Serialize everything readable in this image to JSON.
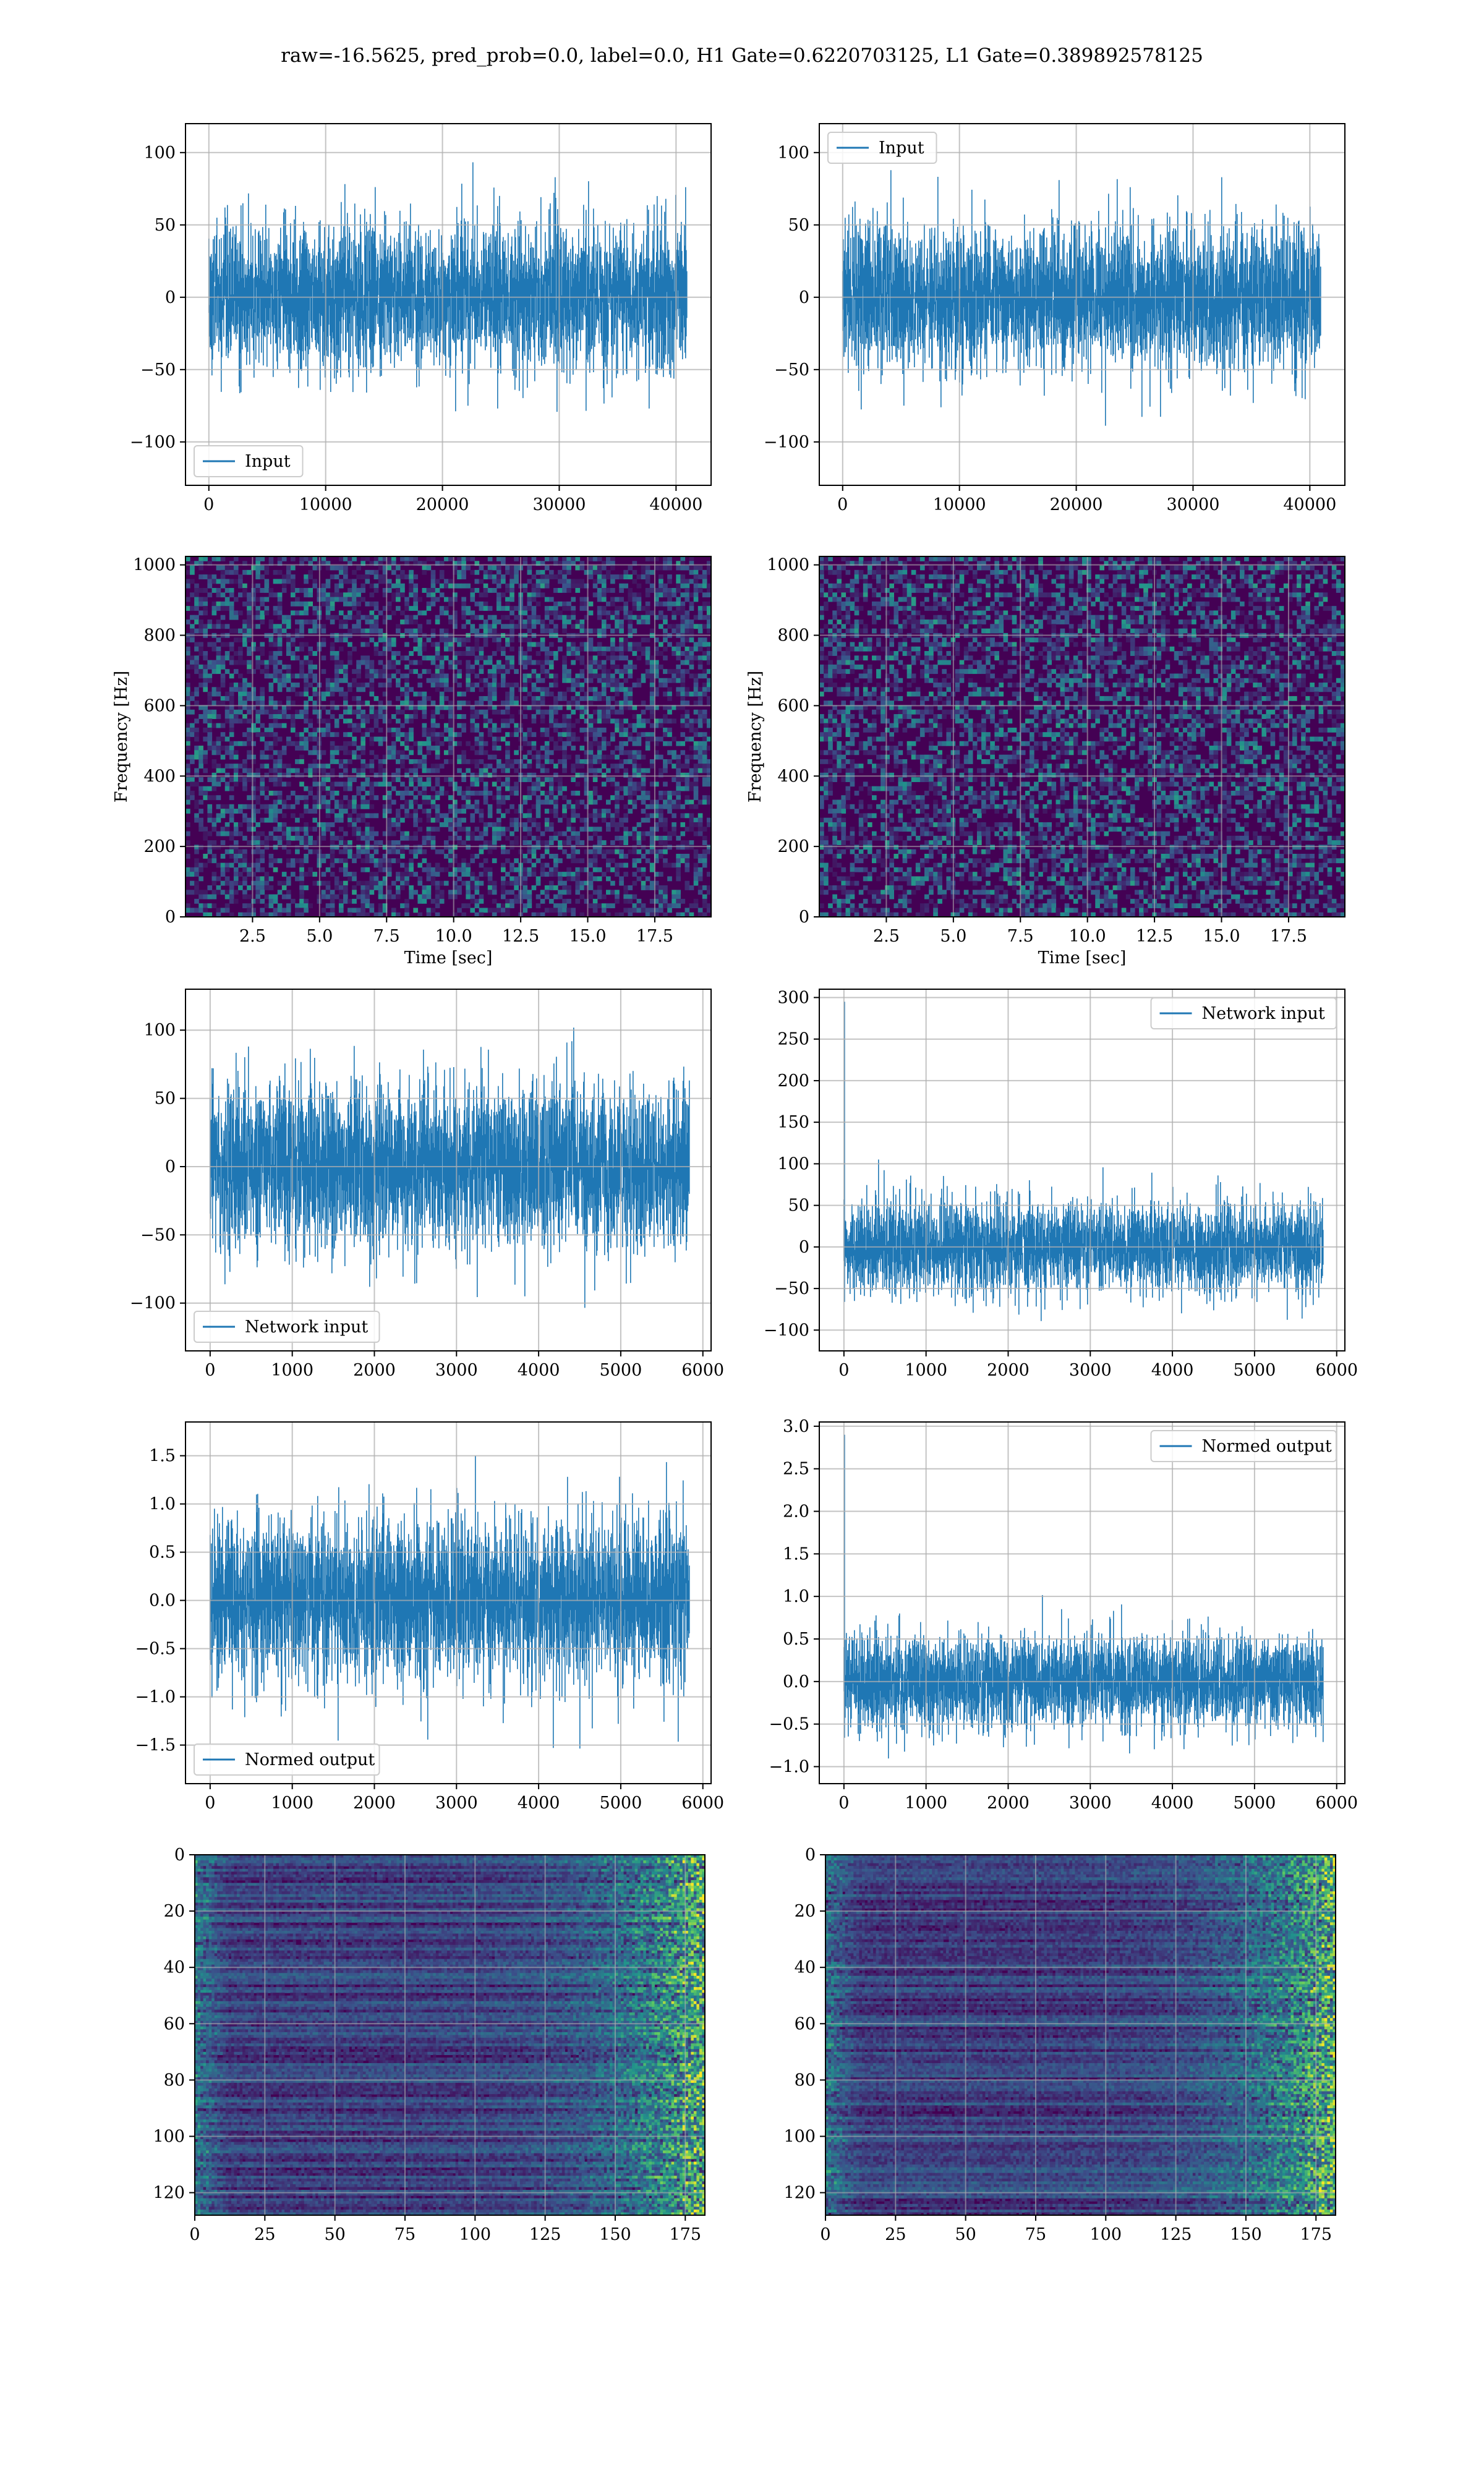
{
  "suptitle": "raw=-16.5625, pred_prob=0.0, label=0.0, H1 Gate=0.6220703125, L1 Gate=0.389892578125",
  "colors": {
    "line": "#1f77b4",
    "grid": "#b0b0b0",
    "viridis_low": "#440154",
    "viridis_mid": "#3b528b",
    "viridis_teal": "#21918c",
    "viridis_green": "#5ec962",
    "viridis_high": "#fde725"
  },
  "chart_data": [
    {
      "id": "input_h1",
      "type": "line",
      "series": [
        {
          "name": "Input",
          "n": 40960,
          "mean": 0,
          "envelope": [
            -100,
            100
          ]
        }
      ],
      "xlim": [
        -2000,
        43000
      ],
      "ylim": [
        -130,
        120
      ],
      "xticks": [
        0,
        10000,
        20000,
        30000,
        40000
      ],
      "xtick_labels": [
        "0",
        "10000",
        "20000",
        "30000",
        "40000"
      ],
      "yticks": [
        -100,
        -50,
        0,
        50,
        100
      ],
      "ytick_labels": [
        "−100",
        "−50",
        "0",
        "50",
        "100"
      ],
      "xlabel": "",
      "ylabel": "",
      "legend": "lower-left",
      "grid": true
    },
    {
      "id": "input_l1",
      "type": "line",
      "series": [
        {
          "name": "Input",
          "n": 40960,
          "mean": 0,
          "envelope": [
            -100,
            100
          ]
        }
      ],
      "xlim": [
        -2000,
        43000
      ],
      "ylim": [
        -130,
        120
      ],
      "xticks": [
        0,
        10000,
        20000,
        30000,
        40000
      ],
      "xtick_labels": [
        "0",
        "10000",
        "20000",
        "30000",
        "40000"
      ],
      "yticks": [
        -100,
        -50,
        0,
        50,
        100
      ],
      "ytick_labels": [
        "−100",
        "−50",
        "0",
        "50",
        "100"
      ],
      "xlabel": "",
      "ylabel": "",
      "legend": "upper-left",
      "grid": true
    },
    {
      "id": "spec_h1",
      "type": "heatmap",
      "xlim": [
        0,
        19.6
      ],
      "ylim": [
        0,
        1024
      ],
      "xticks": [
        2.5,
        5,
        7.5,
        10,
        12.5,
        15,
        17.5
      ],
      "xtick_labels": [
        "2.5",
        "5.0",
        "7.5",
        "10.0",
        "12.5",
        "15.0",
        "17.5"
      ],
      "yticks": [
        0,
        200,
        400,
        600,
        800,
        1000
      ],
      "ytick_labels": [
        "0",
        "200",
        "400",
        "600",
        "800",
        "1000"
      ],
      "xlabel": "Time [sec]",
      "ylabel": "Frequency [Hz]",
      "grid": true
    },
    {
      "id": "spec_l1",
      "type": "heatmap",
      "xlim": [
        0,
        19.6
      ],
      "ylim": [
        0,
        1024
      ],
      "xticks": [
        2.5,
        5,
        7.5,
        10,
        12.5,
        15,
        17.5
      ],
      "xtick_labels": [
        "2.5",
        "5.0",
        "7.5",
        "10.0",
        "12.5",
        "15.0",
        "17.5"
      ],
      "yticks": [
        0,
        200,
        400,
        600,
        800,
        1000
      ],
      "ytick_labels": [
        "0",
        "200",
        "400",
        "600",
        "800",
        "1000"
      ],
      "xlabel": "Time [sec]",
      "ylabel": "Frequency [Hz]",
      "grid": true
    },
    {
      "id": "net_h1",
      "type": "line",
      "series": [
        {
          "name": "Network input",
          "n": 5840,
          "mean": 0,
          "envelope": [
            -120,
            120
          ]
        }
      ],
      "xlim": [
        -300,
        6100
      ],
      "ylim": [
        -135,
        130
      ],
      "xticks": [
        0,
        1000,
        2000,
        3000,
        4000,
        5000,
        6000
      ],
      "xtick_labels": [
        "0",
        "1000",
        "2000",
        "3000",
        "4000",
        "5000",
        "6000"
      ],
      "yticks": [
        -100,
        -50,
        0,
        50,
        100
      ],
      "ytick_labels": [
        "−100",
        "−50",
        "0",
        "50",
        "100"
      ],
      "xlabel": "",
      "ylabel": "",
      "legend": "lower-left",
      "grid": true
    },
    {
      "id": "net_l1",
      "type": "line",
      "series": [
        {
          "name": "Network input",
          "n": 5840,
          "mean": 0,
          "envelope": [
            -110,
            295
          ]
        }
      ],
      "xlim": [
        -300,
        6100
      ],
      "ylim": [
        -125,
        310
      ],
      "xticks": [
        0,
        1000,
        2000,
        3000,
        4000,
        5000,
        6000
      ],
      "xtick_labels": [
        "0",
        "1000",
        "2000",
        "3000",
        "4000",
        "5000",
        "6000"
      ],
      "yticks": [
        -100,
        -50,
        0,
        50,
        100,
        150,
        200,
        250,
        300
      ],
      "ytick_labels": [
        "−100",
        "−50",
        "0",
        "50",
        "100",
        "150",
        "200",
        "250",
        "300"
      ],
      "xlabel": "",
      "ylabel": "",
      "legend": "upper-right",
      "grid": true
    },
    {
      "id": "norm_h1",
      "type": "line",
      "series": [
        {
          "name": "Normed output",
          "n": 5840,
          "mean": 0,
          "envelope": [
            -1.7,
            1.7
          ]
        }
      ],
      "xlim": [
        -300,
        6100
      ],
      "ylim": [
        -1.9,
        1.85
      ],
      "xticks": [
        0,
        1000,
        2000,
        3000,
        4000,
        5000,
        6000
      ],
      "xtick_labels": [
        "0",
        "1000",
        "2000",
        "3000",
        "4000",
        "5000",
        "6000"
      ],
      "yticks": [
        -1.5,
        -1.0,
        -0.5,
        0.0,
        0.5,
        1.0,
        1.5
      ],
      "ytick_labels": [
        "−1.5",
        "−1.0",
        "−0.5",
        "0.0",
        "0.5",
        "1.0",
        "1.5"
      ],
      "xlabel": "",
      "ylabel": "",
      "legend": "lower-left",
      "grid": true
    },
    {
      "id": "norm_l1",
      "type": "line",
      "series": [
        {
          "name": "Normed output",
          "n": 5840,
          "mean": 0,
          "envelope": [
            -1.1,
            2.9
          ]
        }
      ],
      "xlim": [
        -300,
        6100
      ],
      "ylim": [
        -1.2,
        3.05
      ],
      "xticks": [
        0,
        1000,
        2000,
        3000,
        4000,
        5000,
        6000
      ],
      "xtick_labels": [
        "0",
        "1000",
        "2000",
        "3000",
        "4000",
        "5000",
        "6000"
      ],
      "yticks": [
        -1.0,
        -0.5,
        0.0,
        0.5,
        1.0,
        1.5,
        2.0,
        2.5,
        3.0
      ],
      "ytick_labels": [
        "−1.0",
        "−0.5",
        "0.0",
        "0.5",
        "1.0",
        "1.5",
        "2.0",
        "2.5",
        "3.0"
      ],
      "xlabel": "",
      "ylabel": "",
      "legend": "upper-right",
      "grid": true
    },
    {
      "id": "feat_h1",
      "type": "heatmap",
      "xlim": [
        0,
        182
      ],
      "ylim": [
        128,
        0
      ],
      "xticks": [
        0,
        25,
        50,
        75,
        100,
        125,
        150,
        175
      ],
      "xtick_labels": [
        "0",
        "25",
        "50",
        "75",
        "100",
        "125",
        "150",
        "175"
      ],
      "yticks": [
        0,
        20,
        40,
        60,
        80,
        100,
        120
      ],
      "ytick_labels": [
        "0",
        "20",
        "40",
        "60",
        "80",
        "100",
        "120"
      ],
      "xlabel": "",
      "ylabel": "",
      "grid": true
    },
    {
      "id": "feat_l1",
      "type": "heatmap",
      "xlim": [
        0,
        182
      ],
      "ylim": [
        128,
        0
      ],
      "xticks": [
        0,
        25,
        50,
        75,
        100,
        125,
        150,
        175
      ],
      "xtick_labels": [
        "0",
        "25",
        "50",
        "75",
        "100",
        "125",
        "150",
        "175"
      ],
      "yticks": [
        0,
        20,
        40,
        60,
        80,
        100,
        120
      ],
      "ytick_labels": [
        "0",
        "20",
        "40",
        "60",
        "80",
        "100",
        "120"
      ],
      "xlabel": "",
      "ylabel": "",
      "grid": true
    }
  ]
}
